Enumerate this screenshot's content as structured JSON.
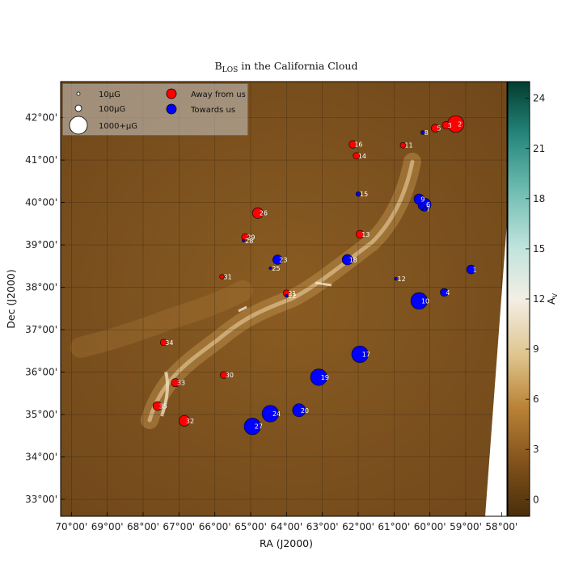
{
  "chart_data": {
    "type": "scatter",
    "title": "B_LOS in the California Cloud",
    "title_main": "B",
    "title_sub": "LOS",
    "title_rest": " in the California Cloud",
    "xlabel": "RA (J2000)",
    "ylabel": "Dec (J2000)",
    "colorbar_label": "A",
    "colorbar_label_sub": "V",
    "colorbar_range": [
      -1,
      25
    ],
    "colorbar_ticks": [
      "0",
      "3",
      "6",
      "9",
      "12",
      "15",
      "18",
      "21",
      "24"
    ],
    "colorbar_tick_values": [
      0,
      3,
      6,
      9,
      12,
      15,
      18,
      21,
      24
    ],
    "xlim": [
      70.3,
      57.85
    ],
    "ylim": [
      32.6,
      42.85
    ],
    "x_ticks": [
      "70°00'",
      "69°00'",
      "68°00'",
      "67°00'",
      "66°00'",
      "65°00'",
      "64°00'",
      "63°00'",
      "62°00'",
      "61°00'",
      "60°00'",
      "59°00'",
      "58°00'"
    ],
    "x_tick_values": [
      70,
      69,
      68,
      67,
      66,
      65,
      64,
      63,
      62,
      61,
      60,
      59,
      58
    ],
    "y_ticks": [
      "33°00'",
      "34°00'",
      "35°00'",
      "36°00'",
      "37°00'",
      "38°00'",
      "39°00'",
      "40°00'",
      "41°00'",
      "42°00'"
    ],
    "y_tick_values": [
      33,
      34,
      35,
      36,
      37,
      38,
      39,
      40,
      41,
      42
    ],
    "grid": true,
    "legend": [
      {
        "label": "10μG",
        "value": 10
      },
      {
        "label": "100μG",
        "value": 100
      },
      {
        "label": "1000+μG",
        "value": 1000
      },
      {
        "label": "Away from us",
        "color": "#ff0000"
      },
      {
        "label": "Towards us",
        "color": "#0000ff"
      }
    ],
    "colors": {
      "away": "#ff0000",
      "towards": "#0000ff"
    },
    "series": [
      {
        "name": "Away from us",
        "points": [
          {
            "id": "2",
            "x": 59.28,
            "y": 41.85,
            "b": 520
          },
          {
            "id": "3",
            "x": 59.55,
            "y": 41.82,
            "b": 110
          },
          {
            "id": "5",
            "x": 59.85,
            "y": 41.75,
            "b": 120
          },
          {
            "id": "11",
            "x": 60.75,
            "y": 41.35,
            "b": 60
          },
          {
            "id": "13",
            "x": 61.95,
            "y": 39.25,
            "b": 120
          },
          {
            "id": "14",
            "x": 62.05,
            "y": 41.1,
            "b": 80
          },
          {
            "id": "16",
            "x": 62.15,
            "y": 41.37,
            "b": 110
          },
          {
            "id": "21",
            "x": 64.0,
            "y": 37.86,
            "b": 85
          },
          {
            "id": "26",
            "x": 64.8,
            "y": 39.75,
            "b": 220
          },
          {
            "id": "29",
            "x": 65.15,
            "y": 39.18,
            "b": 100
          },
          {
            "id": "30",
            "x": 65.75,
            "y": 35.93,
            "b": 95
          },
          {
            "id": "31",
            "x": 65.8,
            "y": 38.25,
            "b": 40
          },
          {
            "id": "32",
            "x": 66.85,
            "y": 34.85,
            "b": 220
          },
          {
            "id": "33",
            "x": 67.1,
            "y": 35.75,
            "b": 130
          },
          {
            "id": "34",
            "x": 67.43,
            "y": 36.7,
            "b": 80
          },
          {
            "id": "35",
            "x": 67.6,
            "y": 35.2,
            "b": 150
          }
        ]
      },
      {
        "name": "Towards us",
        "points": [
          {
            "id": "1",
            "x": 58.85,
            "y": 38.42,
            "b": 150
          },
          {
            "id": "4",
            "x": 59.6,
            "y": 37.88,
            "b": 120
          },
          {
            "id": "6",
            "x": 60.15,
            "y": 39.95,
            "b": 320
          },
          {
            "id": "7",
            "x": 60.15,
            "y": 39.85,
            "b": 40
          },
          {
            "id": "8",
            "x": 60.2,
            "y": 41.65,
            "b": 30
          },
          {
            "id": "9",
            "x": 60.3,
            "y": 40.08,
            "b": 200
          },
          {
            "id": "10",
            "x": 60.3,
            "y": 37.68,
            "b": 520
          },
          {
            "id": "12",
            "x": 60.95,
            "y": 38.2,
            "b": 15
          },
          {
            "id": "15",
            "x": 62.0,
            "y": 40.2,
            "b": 40
          },
          {
            "id": "17",
            "x": 61.95,
            "y": 36.42,
            "b": 520
          },
          {
            "id": "18",
            "x": 62.3,
            "y": 38.65,
            "b": 210
          },
          {
            "id": "19",
            "x": 63.1,
            "y": 35.88,
            "b": 520
          },
          {
            "id": "20",
            "x": 63.65,
            "y": 35.1,
            "b": 320
          },
          {
            "id": "22",
            "x": 64.0,
            "y": 37.8,
            "b": 15
          },
          {
            "id": "23",
            "x": 64.25,
            "y": 38.65,
            "b": 170
          },
          {
            "id": "24",
            "x": 64.45,
            "y": 35.02,
            "b": 520
          },
          {
            "id": "25",
            "x": 64.45,
            "y": 38.45,
            "b": 10
          },
          {
            "id": "27",
            "x": 64.95,
            "y": 34.72,
            "b": 520
          },
          {
            "id": "28",
            "x": 65.2,
            "y": 39.1,
            "b": 10
          }
        ]
      }
    ]
  }
}
